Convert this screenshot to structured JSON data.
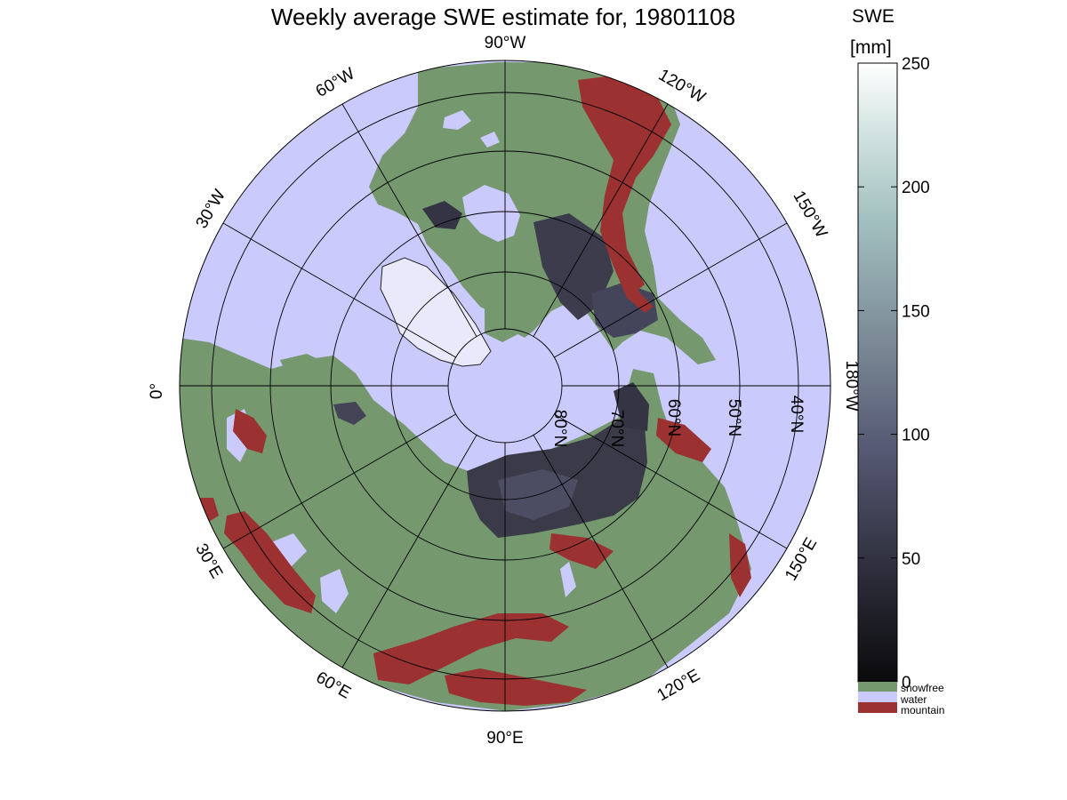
{
  "title": "Weekly average SWE estimate for, 19801108",
  "colorbar": {
    "label_line1": "SWE",
    "label_line2": "[mm]",
    "min": 0,
    "max": 250,
    "ticks": [
      "0",
      "50",
      "100",
      "150",
      "200",
      "250"
    ],
    "gradient": [
      "#0a0a0c",
      "#2e2e3c",
      "#565a74",
      "#7b8a96",
      "#a3c1c0",
      "#d6e6e4",
      "#ffffff"
    ],
    "categories": [
      {
        "label": "snowfree",
        "color": "#75986f"
      },
      {
        "label": "water",
        "color": "#cacafc"
      },
      {
        "label": "mountain",
        "color": "#9b3131"
      }
    ]
  },
  "map": {
    "projection": "north polar stereographic",
    "ocean_color": "#cacafc",
    "land_color": "#75986f",
    "snow_color": "#3a3a48",
    "mountain_color": "#9b3131",
    "longitude_labels": [
      "90°W",
      "60°W",
      "30°W",
      "0°",
      "120°W",
      "150°W",
      "180°W",
      "30°E",
      "60°E",
      "90°E",
      "120°E",
      "150°E"
    ],
    "latitude_labels": [
      "80°N",
      "70°N",
      "60°N",
      "50°N",
      "40°N"
    ]
  }
}
